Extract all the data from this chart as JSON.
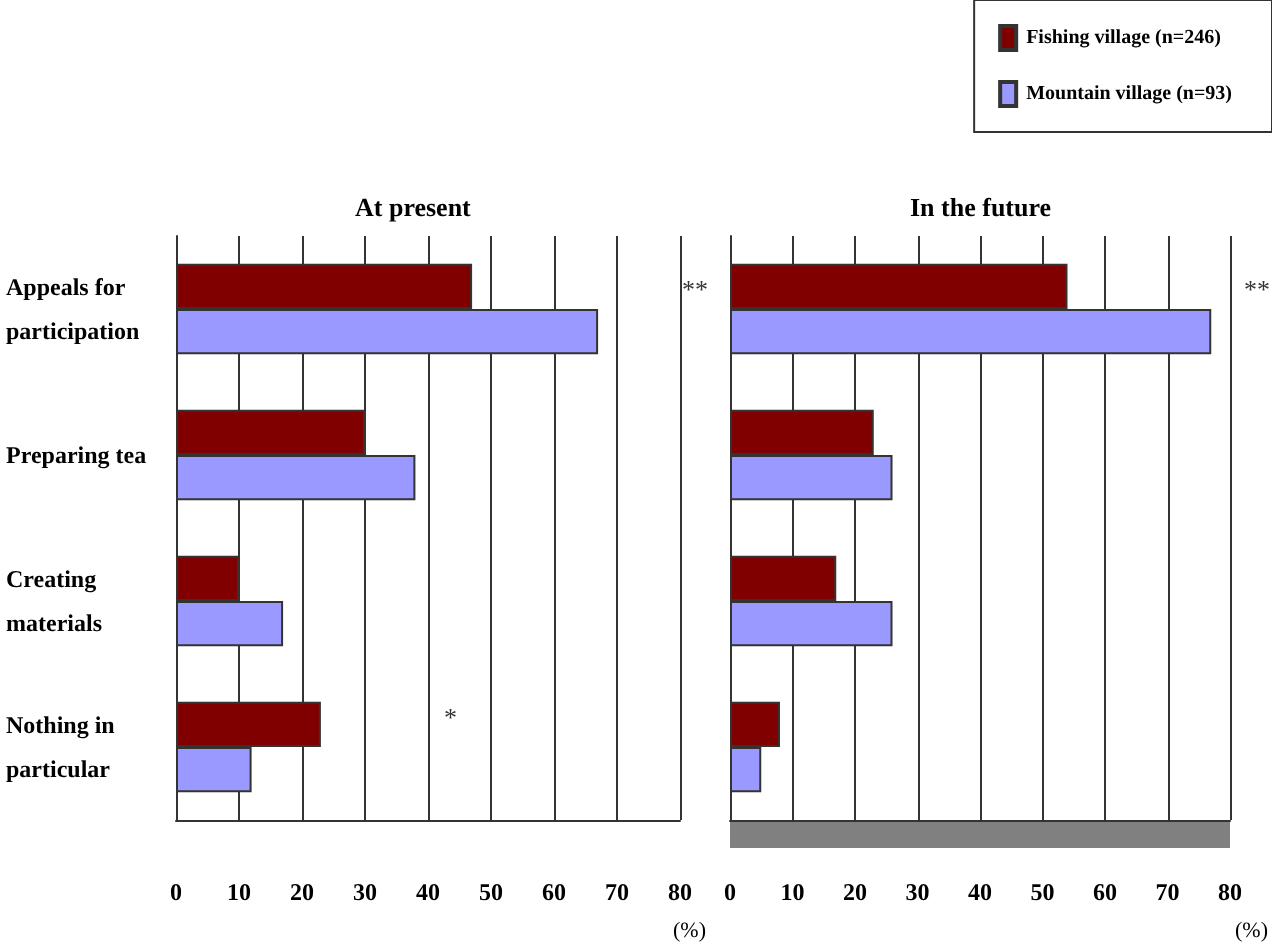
{
  "chart_data": [
    {
      "type": "bar",
      "orientation": "horizontal",
      "title": "At present",
      "xlabel": "(%)",
      "categories": [
        "Appeals for participation",
        "Preparing tea",
        "Creating materials",
        "Nothing in particular"
      ],
      "series": [
        {
          "color": "#800000",
          "values": [
            47,
            30,
            10,
            23
          ]
        },
        {
          "color": "#9999ff",
          "values": [
            67,
            38,
            17,
            12
          ]
        }
      ],
      "xlim": [
        0,
        80
      ],
      "xticks": [
        0,
        10,
        20,
        30,
        40,
        50,
        60,
        70,
        80
      ],
      "grid": "x",
      "annotations": [
        "**",
        "*"
      ]
    },
    {
      "type": "bar",
      "orientation": "horizontal",
      "title": "In the future",
      "xlabel": "(%)",
      "categories": [
        "Appeals for participation",
        "Preparing tea",
        "Creating materials",
        "Nothing in particular"
      ],
      "series": [
        {
          "name": "Fishing village (n=246)",
          "color": "#800000",
          "values": [
            54,
            23,
            17,
            8
          ]
        },
        {
          "name": "Mountain village (n=93)",
          "color": "#9999ff",
          "values": [
            77,
            26,
            26,
            5
          ]
        }
      ],
      "xlim": [
        0,
        80
      ],
      "xticks": [
        0,
        10,
        20,
        30,
        40,
        50,
        60,
        70,
        80
      ],
      "grid": "x",
      "tick_labels": "x",
      "legend": "top right",
      "annotations": [
        "**"
      ]
    }
  ]
}
